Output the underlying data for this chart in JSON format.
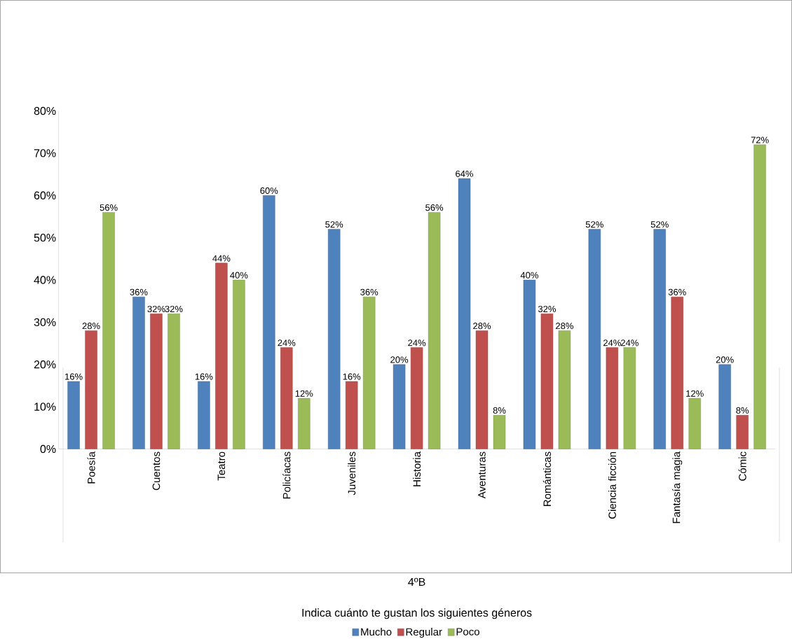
{
  "chart_data": {
    "type": "bar",
    "categories": [
      "Poesía",
      "Cuentos",
      "Teatro",
      "Policíacas",
      "Juveniles",
      "Historia",
      "Aventuras",
      "Románticas",
      "Ciencia ficción",
      "Fantasía magia",
      "Cómic"
    ],
    "series": [
      {
        "name": "Mucho",
        "color": "#4f81bd",
        "values": [
          16,
          36,
          16,
          60,
          52,
          20,
          64,
          40,
          52,
          52,
          20
        ],
        "value_labels": [
          "16%",
          "36%",
          "16%",
          "60%",
          "52%",
          "20%",
          "64%",
          "40%",
          "52%",
          "52%",
          "20%"
        ]
      },
      {
        "name": "Regular",
        "color": "#c0504d",
        "values": [
          28,
          32,
          44,
          24,
          16,
          24,
          28,
          32,
          24,
          36,
          8
        ],
        "value_labels": [
          "28%",
          "32%",
          "44%",
          "24%",
          "16%",
          "24%",
          "28%",
          "32%",
          "24%",
          "36%",
          "8%"
        ]
      },
      {
        "name": "Poco",
        "color": "#9bbb59",
        "values": [
          56,
          32,
          40,
          12,
          36,
          56,
          8,
          28,
          24,
          12,
          72
        ],
        "value_labels": [
          "56%",
          "32%",
          "40%",
          "12%",
          "36%",
          "56%",
          "8%",
          "28%",
          "24%",
          "12%",
          "72%"
        ]
      }
    ],
    "annotations": [
      "4ºB",
      "Indica cuánto te gustan los siguientes géneros"
    ],
    "ylim": [
      0,
      80
    ],
    "yticks": [
      {
        "value": 0,
        "label": "0%"
      },
      {
        "value": 10,
        "label": "10%"
      },
      {
        "value": 20,
        "label": "20%"
      },
      {
        "value": 30,
        "label": "30%"
      },
      {
        "value": 40,
        "label": "40%"
      },
      {
        "value": 50,
        "label": "50%"
      },
      {
        "value": 60,
        "label": "60%"
      },
      {
        "value": 70,
        "label": "70%"
      },
      {
        "value": 80,
        "label": "80%"
      }
    ],
    "legend": "bottom",
    "grid": false
  }
}
